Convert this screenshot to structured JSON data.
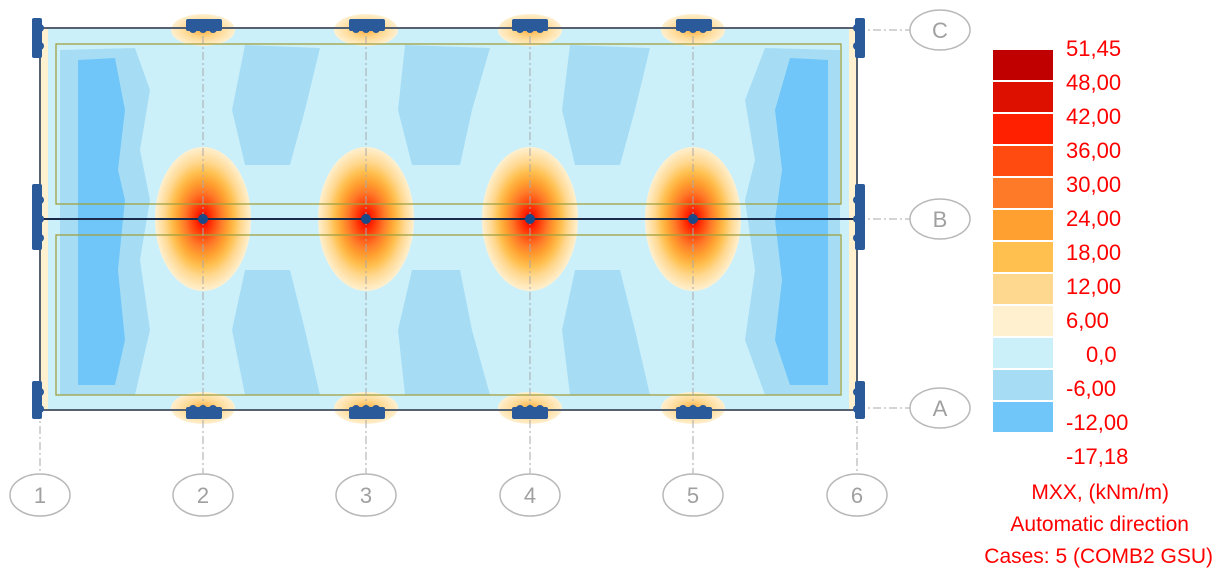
{
  "result": {
    "quantity": "MXX, (kNm/m)",
    "direction": "Automatic direction",
    "cases": "Cases: 5 (COMB2 GSU)"
  },
  "axes": {
    "columns": [
      "1",
      "2",
      "3",
      "4",
      "5",
      "6"
    ],
    "rows": [
      "C",
      "B",
      "A"
    ]
  },
  "legend": {
    "labels": [
      "51,45",
      "48,00",
      "42,00",
      "36,00",
      "30,00",
      "24,00",
      "18,00",
      "12,00",
      "6,00",
      "0,0",
      "-6,00",
      "-12,00",
      "-17,18"
    ],
    "colors": [
      "#c00000",
      "#dd1000",
      "#ff2000",
      "#ff4a10",
      "#ff7a28",
      "#ffa030",
      "#ffc050",
      "#ffd890",
      "#fff0d0",
      "#ccf0fa",
      "#a6ddf5",
      "#70c6f8"
    ]
  },
  "colors": {
    "accent_text": "#ff0000",
    "support": "#2a5a9a",
    "slab_edge": "#556070",
    "beam_line": "#1a2a4a",
    "inner_outline": "#a0a040"
  }
}
